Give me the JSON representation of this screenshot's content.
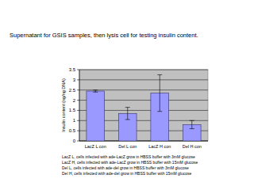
{
  "chart_data": {
    "type": "bar",
    "title": "Supernatant for GSIS samples, then lysis cell for testing insulin content.",
    "y_label": "Insulin content (ng/ng DNA)",
    "categories": [
      "LacZ L con",
      "Del L con",
      "LacZ H con",
      "Del H con"
    ],
    "values": [
      2.45,
      1.35,
      2.35,
      0.8
    ],
    "errors": [
      0.05,
      0.3,
      0.9,
      0.2
    ],
    "color": "#9999ff",
    "ylim": [
      0,
      3.5
    ],
    "yticks": [
      0,
      0.5,
      1,
      1.5,
      2,
      2.5,
      3,
      3.5
    ],
    "grid": true,
    "notes": [
      "LacZ L, cells infected with ade-LacZ grow in HBSS buffer with 3mM glucose",
      "LacZ H, cells infected with ade-LacZ grow in HBSS buffer with 15mM glucose",
      "Del L, cells infected with ade-del grow in HBSS buffer with 3mM glucose",
      "Del H, cells infected with ade-del grow in HBSS buffer with 15mM glucose"
    ]
  }
}
